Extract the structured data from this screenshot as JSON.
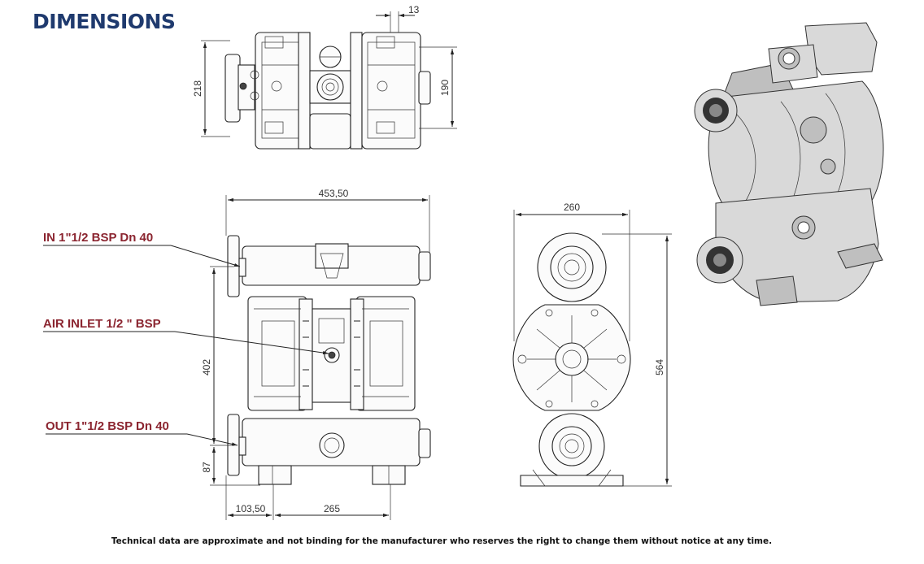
{
  "title": "DIMENSIONS",
  "dimensions": {
    "top_13": "13",
    "top_218": "218",
    "top_190": "190",
    "front_width": "453,50",
    "front_402": "402",
    "front_87": "87",
    "front_103": "103,50",
    "front_265": "265",
    "side_260": "260",
    "side_564": "564"
  },
  "callouts": {
    "inlet": "IN 1\"1/2 BSP Dn 40",
    "air": "AIR INLET 1/2 \" BSP",
    "outlet": "OUT 1\"1/2 BSP Dn 40"
  },
  "disclaimer": "Technical data are approximate and not binding for the manufacturer who reserves the right to change them without notice at any time.",
  "colors": {
    "title": "#1f3a6e",
    "callout": "#8b2530"
  }
}
